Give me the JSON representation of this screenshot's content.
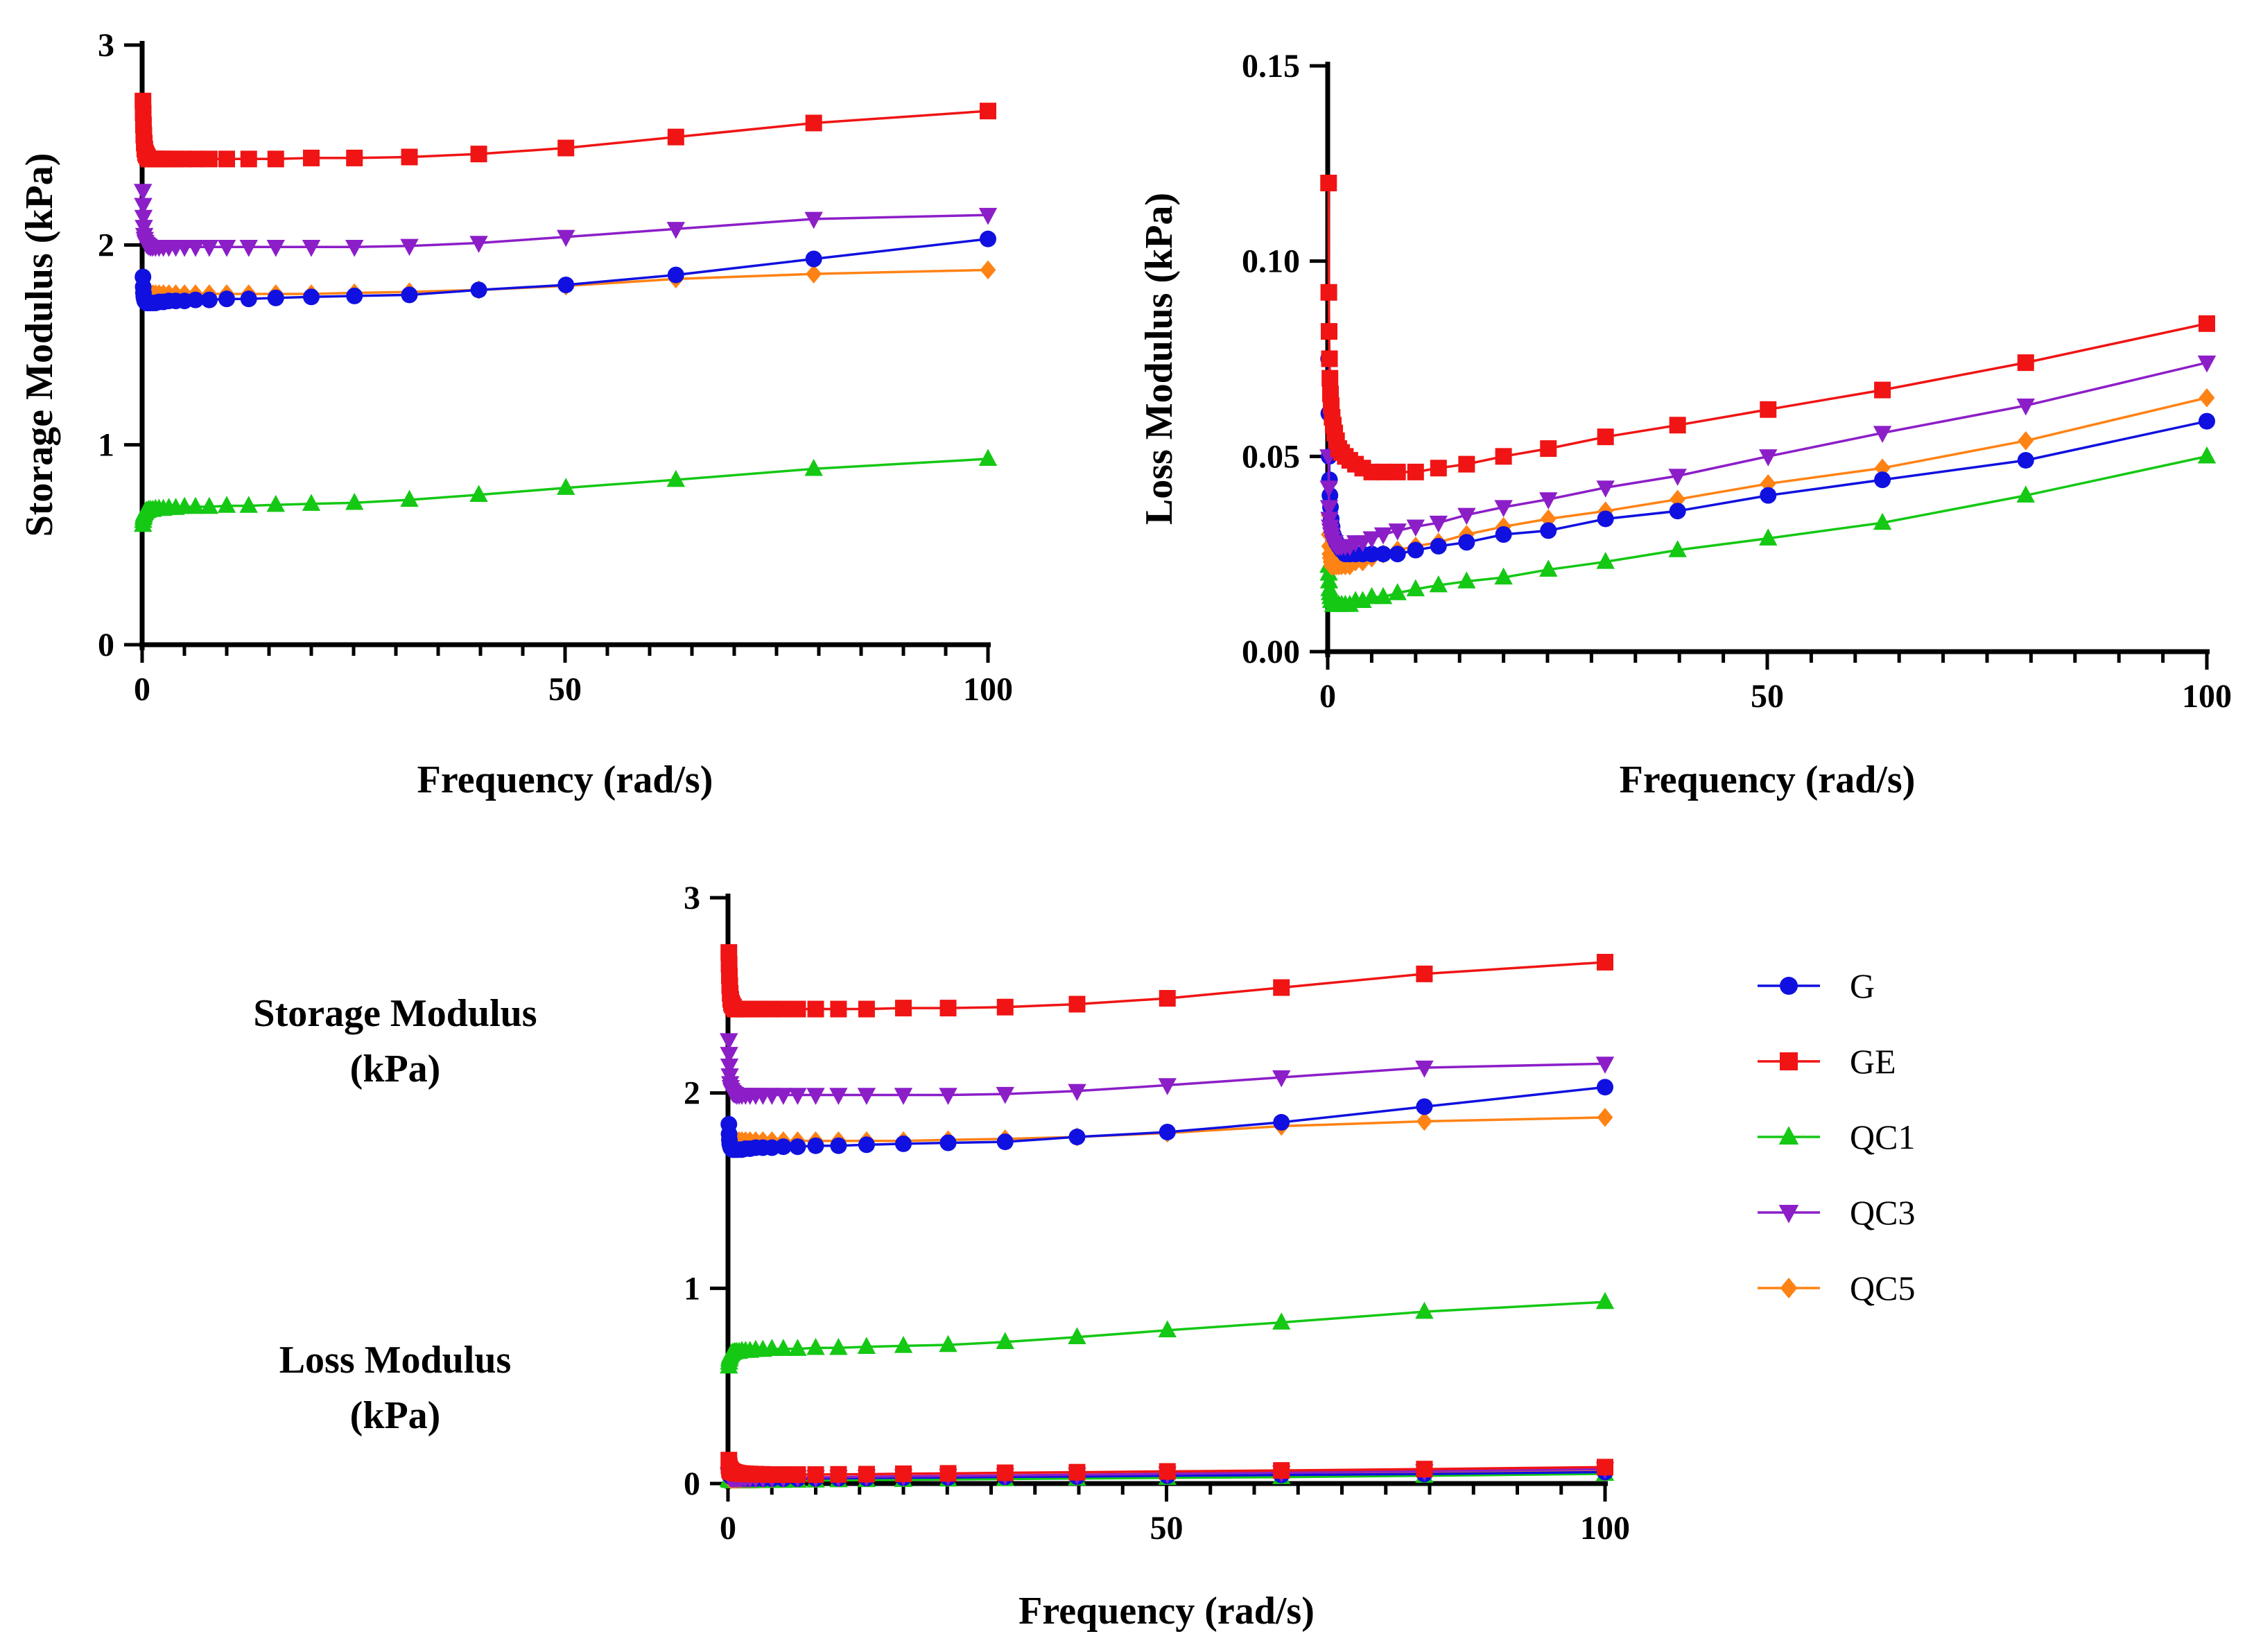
{
  "series_styles": [
    {
      "name": "G",
      "color": "#1010e0",
      "marker": "circle"
    },
    {
      "name": "GE",
      "color": "#f01414",
      "marker": "square"
    },
    {
      "name": "QC1",
      "color": "#14c814",
      "marker": "triangle-up"
    },
    {
      "name": "QC3",
      "color": "#8c1ec8",
      "marker": "triangle-down"
    },
    {
      "name": "QC5",
      "color": "#ff8214",
      "marker": "diamond"
    }
  ],
  "legend": {
    "items": [
      "G",
      "GE",
      "QC1",
      "QC3",
      "QC5"
    ]
  },
  "side_labels": {
    "storage_line1": "Storage Modulus",
    "storage_line2": "(kPa)",
    "loss_line1": "Loss Modulus",
    "loss_line2": "(kPa)"
  },
  "chart_data": [
    {
      "id": "storage",
      "type": "line",
      "title": "",
      "xlabel": "Frequency (rad/s)",
      "ylabel": "Storage Modulus (kPa)",
      "xlim": [
        0,
        100
      ],
      "ylim": [
        0,
        3
      ],
      "xticks": [
        0,
        50,
        100
      ],
      "yticks": [
        0,
        1,
        2,
        3
      ],
      "x": [
        0.1,
        0.126,
        0.158,
        0.2,
        0.251,
        0.316,
        0.398,
        0.501,
        0.631,
        0.794,
        1,
        1.26,
        1.58,
        2,
        2.51,
        3.16,
        3.98,
        5.01,
        6.31,
        7.94,
        10,
        12.6,
        15.8,
        20,
        25.1,
        31.6,
        39.8,
        50.1,
        63.1,
        79.4,
        100
      ],
      "series": [
        {
          "name": "G",
          "values": [
            1.84,
            1.79,
            1.76,
            1.74,
            1.73,
            1.72,
            1.715,
            1.71,
            1.71,
            1.71,
            1.71,
            1.71,
            1.71,
            1.715,
            1.715,
            1.72,
            1.72,
            1.72,
            1.725,
            1.725,
            1.73,
            1.73,
            1.735,
            1.74,
            1.745,
            1.75,
            1.775,
            1.8,
            1.85,
            1.93,
            2.03
          ]
        },
        {
          "name": "GE",
          "values": [
            2.72,
            2.66,
            2.6,
            2.55,
            2.51,
            2.48,
            2.46,
            2.45,
            2.44,
            2.43,
            2.43,
            2.43,
            2.43,
            2.43,
            2.43,
            2.43,
            2.43,
            2.43,
            2.43,
            2.43,
            2.43,
            2.43,
            2.43,
            2.435,
            2.435,
            2.44,
            2.455,
            2.485,
            2.54,
            2.61,
            2.67
          ]
        },
        {
          "name": "QC1",
          "values": [
            0.6,
            0.62,
            0.635,
            0.645,
            0.655,
            0.66,
            0.665,
            0.67,
            0.67,
            0.675,
            0.675,
            0.675,
            0.68,
            0.68,
            0.68,
            0.685,
            0.685,
            0.69,
            0.69,
            0.69,
            0.695,
            0.695,
            0.7,
            0.705,
            0.71,
            0.725,
            0.75,
            0.785,
            0.825,
            0.88,
            0.93
          ]
        },
        {
          "name": "QC3",
          "values": [
            2.27,
            2.2,
            2.14,
            2.09,
            2.05,
            2.03,
            2.015,
            2.005,
            2.0,
            1.995,
            1.99,
            1.99,
            1.99,
            1.99,
            1.99,
            1.99,
            1.99,
            1.99,
            1.99,
            1.99,
            1.99,
            1.99,
            1.99,
            1.99,
            1.99,
            1.995,
            2.01,
            2.04,
            2.08,
            2.13,
            2.15
          ]
        },
        {
          "name": "QC5",
          "values": [
            1.78,
            1.77,
            1.765,
            1.76,
            1.76,
            1.755,
            1.755,
            1.755,
            1.755,
            1.755,
            1.755,
            1.755,
            1.755,
            1.755,
            1.755,
            1.755,
            1.755,
            1.755,
            1.755,
            1.755,
            1.755,
            1.755,
            1.755,
            1.755,
            1.76,
            1.765,
            1.775,
            1.795,
            1.83,
            1.855,
            1.875
          ]
        }
      ]
    },
    {
      "id": "loss",
      "type": "line",
      "title": "",
      "xlabel": "Frequency (rad/s)",
      "ylabel": "Loss Modulus (kPa)",
      "xlim": [
        0,
        100
      ],
      "ylim": [
        0,
        0.15
      ],
      "xticks": [
        0,
        50,
        100
      ],
      "yticks": [
        0.0,
        0.05,
        0.1,
        0.15
      ],
      "ytick_labels": [
        "0.00",
        "0.05",
        "0.10",
        "0.15"
      ],
      "x": [
        0.1,
        0.126,
        0.158,
        0.2,
        0.251,
        0.316,
        0.398,
        0.501,
        0.631,
        0.794,
        1,
        1.26,
        1.58,
        2,
        2.51,
        3.16,
        3.98,
        5.01,
        6.31,
        7.94,
        10,
        12.6,
        15.8,
        20,
        25.1,
        31.6,
        39.8,
        50.1,
        63.1,
        79.4,
        100
      ],
      "series": [
        {
          "name": "G",
          "values": [
            0.075,
            0.061,
            0.05,
            0.044,
            0.04,
            0.037,
            0.034,
            0.032,
            0.03,
            0.029,
            0.028,
            0.027,
            0.026,
            0.025,
            0.025,
            0.025,
            0.025,
            0.025,
            0.025,
            0.025,
            0.026,
            0.027,
            0.028,
            0.03,
            0.031,
            0.034,
            0.036,
            0.04,
            0.044,
            0.049,
            0.059
          ]
        },
        {
          "name": "GE",
          "values": [
            0.12,
            0.092,
            0.082,
            0.075,
            0.07,
            0.066,
            0.063,
            0.06,
            0.058,
            0.056,
            0.054,
            0.052,
            0.051,
            0.05,
            0.049,
            0.048,
            0.047,
            0.046,
            0.046,
            0.046,
            0.046,
            0.047,
            0.048,
            0.05,
            0.052,
            0.055,
            0.058,
            0.062,
            0.067,
            0.074,
            0.084
          ]
        },
        {
          "name": "QC1",
          "values": [
            0.022,
            0.02,
            0.018,
            0.016,
            0.015,
            0.014,
            0.013,
            0.013,
            0.012,
            0.012,
            0.012,
            0.012,
            0.012,
            0.012,
            0.012,
            0.013,
            0.013,
            0.014,
            0.014,
            0.015,
            0.016,
            0.017,
            0.018,
            0.019,
            0.021,
            0.023,
            0.026,
            0.029,
            0.033,
            0.04,
            0.05
          ]
        },
        {
          "name": "QC3",
          "values": [
            0.05,
            0.042,
            0.037,
            0.034,
            0.032,
            0.031,
            0.03,
            0.029,
            0.028,
            0.028,
            0.027,
            0.027,
            0.027,
            0.027,
            0.027,
            0.028,
            0.028,
            0.029,
            0.03,
            0.031,
            0.032,
            0.033,
            0.035,
            0.037,
            0.039,
            0.042,
            0.045,
            0.05,
            0.056,
            0.063,
            0.074
          ]
        },
        {
          "name": "QC5",
          "values": [
            0.035,
            0.03,
            0.027,
            0.025,
            0.024,
            0.023,
            0.022,
            0.022,
            0.022,
            0.022,
            0.022,
            0.022,
            0.022,
            0.022,
            0.022,
            0.023,
            0.023,
            0.024,
            0.025,
            0.026,
            0.027,
            0.028,
            0.03,
            0.032,
            0.034,
            0.036,
            0.039,
            0.043,
            0.047,
            0.054,
            0.065
          ]
        }
      ]
    },
    {
      "id": "combined",
      "type": "line",
      "title": "",
      "xlabel": "Frequency (rad/s)",
      "ylabel": "",
      "xlim": [
        0,
        100
      ],
      "ylim": [
        0,
        3
      ],
      "xticks": [
        0,
        50,
        100
      ],
      "yticks": [
        0,
        1,
        2,
        3
      ],
      "x": [
        0.1,
        0.126,
        0.158,
        0.2,
        0.251,
        0.316,
        0.398,
        0.501,
        0.631,
        0.794,
        1,
        1.26,
        1.58,
        2,
        2.51,
        3.16,
        3.98,
        5.01,
        6.31,
        7.94,
        10,
        12.6,
        15.8,
        20,
        25.1,
        31.6,
        39.8,
        50.1,
        63.1,
        79.4,
        100
      ],
      "series": [
        {
          "name": "G",
          "group": "storage",
          "values": [
            1.84,
            1.79,
            1.76,
            1.74,
            1.73,
            1.72,
            1.715,
            1.71,
            1.71,
            1.71,
            1.71,
            1.71,
            1.71,
            1.715,
            1.715,
            1.72,
            1.72,
            1.72,
            1.725,
            1.725,
            1.73,
            1.73,
            1.735,
            1.74,
            1.745,
            1.75,
            1.775,
            1.8,
            1.85,
            1.93,
            2.03
          ]
        },
        {
          "name": "GE",
          "group": "storage",
          "values": [
            2.72,
            2.66,
            2.6,
            2.55,
            2.51,
            2.48,
            2.46,
            2.45,
            2.44,
            2.43,
            2.43,
            2.43,
            2.43,
            2.43,
            2.43,
            2.43,
            2.43,
            2.43,
            2.43,
            2.43,
            2.43,
            2.43,
            2.43,
            2.435,
            2.435,
            2.44,
            2.455,
            2.485,
            2.54,
            2.61,
            2.67
          ]
        },
        {
          "name": "QC1",
          "group": "storage",
          "values": [
            0.6,
            0.62,
            0.635,
            0.645,
            0.655,
            0.66,
            0.665,
            0.67,
            0.67,
            0.675,
            0.675,
            0.675,
            0.68,
            0.68,
            0.68,
            0.685,
            0.685,
            0.69,
            0.69,
            0.69,
            0.695,
            0.695,
            0.7,
            0.705,
            0.71,
            0.725,
            0.75,
            0.785,
            0.825,
            0.88,
            0.93
          ]
        },
        {
          "name": "QC3",
          "group": "storage",
          "values": [
            2.27,
            2.2,
            2.14,
            2.09,
            2.05,
            2.03,
            2.015,
            2.005,
            2.0,
            1.995,
            1.99,
            1.99,
            1.99,
            1.99,
            1.99,
            1.99,
            1.99,
            1.99,
            1.99,
            1.99,
            1.99,
            1.99,
            1.99,
            1.99,
            1.99,
            1.995,
            2.01,
            2.04,
            2.08,
            2.13,
            2.15
          ]
        },
        {
          "name": "QC5",
          "group": "storage",
          "values": [
            1.78,
            1.77,
            1.765,
            1.76,
            1.76,
            1.755,
            1.755,
            1.755,
            1.755,
            1.755,
            1.755,
            1.755,
            1.755,
            1.755,
            1.755,
            1.755,
            1.755,
            1.755,
            1.755,
            1.755,
            1.755,
            1.755,
            1.755,
            1.755,
            1.76,
            1.765,
            1.775,
            1.795,
            1.83,
            1.855,
            1.875
          ]
        },
        {
          "name": "G",
          "group": "loss",
          "values": [
            0.075,
            0.061,
            0.05,
            0.044,
            0.04,
            0.037,
            0.034,
            0.032,
            0.03,
            0.029,
            0.028,
            0.027,
            0.026,
            0.025,
            0.025,
            0.025,
            0.025,
            0.025,
            0.025,
            0.025,
            0.026,
            0.027,
            0.028,
            0.03,
            0.031,
            0.034,
            0.036,
            0.04,
            0.044,
            0.049,
            0.059
          ]
        },
        {
          "name": "GE",
          "group": "loss",
          "values": [
            0.12,
            0.092,
            0.082,
            0.075,
            0.07,
            0.066,
            0.063,
            0.06,
            0.058,
            0.056,
            0.054,
            0.052,
            0.051,
            0.05,
            0.049,
            0.048,
            0.047,
            0.046,
            0.046,
            0.046,
            0.046,
            0.047,
            0.048,
            0.05,
            0.052,
            0.055,
            0.058,
            0.062,
            0.067,
            0.074,
            0.084
          ]
        },
        {
          "name": "QC1",
          "group": "loss",
          "values": [
            0.022,
            0.02,
            0.018,
            0.016,
            0.015,
            0.014,
            0.013,
            0.013,
            0.012,
            0.012,
            0.012,
            0.012,
            0.012,
            0.012,
            0.012,
            0.013,
            0.013,
            0.014,
            0.014,
            0.015,
            0.016,
            0.017,
            0.018,
            0.019,
            0.021,
            0.023,
            0.026,
            0.029,
            0.033,
            0.04,
            0.05
          ]
        },
        {
          "name": "QC3",
          "group": "loss",
          "values": [
            0.05,
            0.042,
            0.037,
            0.034,
            0.032,
            0.031,
            0.03,
            0.029,
            0.028,
            0.028,
            0.027,
            0.027,
            0.027,
            0.027,
            0.027,
            0.028,
            0.028,
            0.029,
            0.03,
            0.031,
            0.032,
            0.033,
            0.035,
            0.037,
            0.039,
            0.042,
            0.045,
            0.05,
            0.056,
            0.063,
            0.074
          ]
        },
        {
          "name": "QC5",
          "group": "loss",
          "values": [
            0.035,
            0.03,
            0.027,
            0.025,
            0.024,
            0.023,
            0.022,
            0.022,
            0.022,
            0.022,
            0.022,
            0.022,
            0.022,
            0.022,
            0.022,
            0.023,
            0.023,
            0.024,
            0.025,
            0.026,
            0.027,
            0.028,
            0.03,
            0.032,
            0.034,
            0.036,
            0.039,
            0.043,
            0.047,
            0.054,
            0.065
          ]
        }
      ]
    }
  ]
}
